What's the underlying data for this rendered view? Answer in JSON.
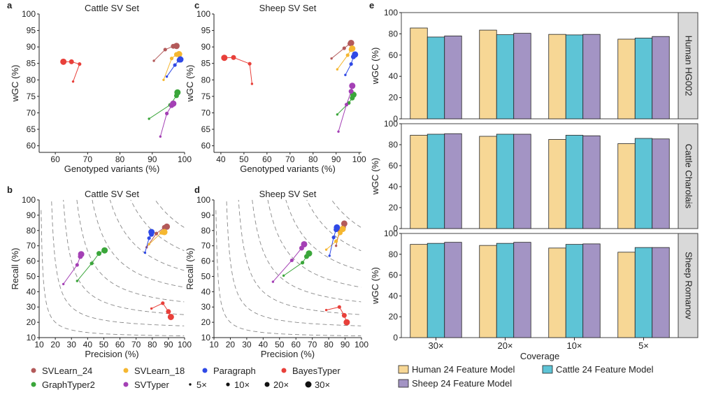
{
  "figure": {
    "panel_letters": [
      "a",
      "b",
      "c",
      "d",
      "e"
    ],
    "legend": {
      "tools": [
        {
          "name": "SVLearn_24",
          "color": "#b35a5a"
        },
        {
          "name": "SVLearn_18",
          "color": "#f5b731"
        },
        {
          "name": "Paragraph",
          "color": "#2f49e6"
        },
        {
          "name": "BayesTyper",
          "color": "#e8403a"
        },
        {
          "name": "GraphTyper2",
          "color": "#3aa63a"
        },
        {
          "name": "SVTyper",
          "color": "#a440b5"
        }
      ],
      "coverages": [
        "5×",
        "10×",
        "20×",
        "30×"
      ]
    }
  },
  "chart_data": [
    {
      "panel": "a",
      "type": "scatter",
      "title": "Cattle SV Set",
      "xlabel": "Genotyped variants (%)",
      "ylabel": "wGC (%)",
      "xlim": [
        55,
        100
      ],
      "ylim": [
        58,
        100
      ],
      "xticks": [
        60,
        70,
        80,
        90,
        100
      ],
      "yticks": [
        60,
        65,
        70,
        75,
        80,
        85,
        90,
        95,
        100
      ],
      "coverages": [
        5,
        10,
        20,
        30
      ],
      "series": [
        {
          "name": "SVLearn_24",
          "x": [
            90.5,
            94.0,
            96.5,
            97.5
          ],
          "y": [
            85.8,
            89.2,
            90.2,
            90.3
          ]
        },
        {
          "name": "SVLearn_18",
          "x": [
            93.5,
            96.0,
            97.5,
            98.3
          ],
          "y": [
            80.0,
            86.5,
            87.7,
            87.8
          ]
        },
        {
          "name": "Paragraph",
          "x": [
            94.5,
            97.0,
            98.3,
            98.7
          ],
          "y": [
            81.0,
            84.5,
            86.0,
            86.2
          ]
        },
        {
          "name": "BayesTyper",
          "x": [
            65.5,
            67.5,
            65.0,
            62.5
          ],
          "y": [
            79.5,
            84.8,
            85.5,
            85.5
          ]
        },
        {
          "name": "GraphTyper2",
          "x": [
            89.0,
            95.5,
            97.5,
            97.8
          ],
          "y": [
            68.2,
            72.4,
            75.2,
            76.2
          ]
        },
        {
          "name": "SVTyper",
          "x": [
            92.5,
            94.5,
            96.0,
            96.5
          ],
          "y": [
            62.8,
            69.8,
            72.2,
            72.8
          ]
        }
      ]
    },
    {
      "panel": "c",
      "type": "scatter",
      "title": "Sheep SV Set",
      "xlabel": "Genotyped variants (%)",
      "ylabel": "wGC (%)",
      "xlim": [
        37,
        101
      ],
      "ylim": [
        58,
        100
      ],
      "xticks": [
        40,
        50,
        60,
        70,
        80,
        90,
        100
      ],
      "yticks": [
        60,
        65,
        70,
        75,
        80,
        85,
        90,
        95,
        100
      ],
      "coverages": [
        5,
        10,
        20,
        30
      ],
      "series": [
        {
          "name": "SVLearn_24",
          "x": [
            88.0,
            93.5,
            96.0,
            96.5
          ],
          "y": [
            86.5,
            89.6,
            91.0,
            91.2
          ]
        },
        {
          "name": "SVLearn_18",
          "x": [
            90.5,
            95.0,
            96.5,
            97.0
          ],
          "y": [
            83.2,
            87.5,
            89.2,
            89.5
          ]
        },
        {
          "name": "Paragraph",
          "x": [
            94.0,
            96.5,
            97.5,
            98.2
          ],
          "y": [
            81.5,
            84.8,
            87.0,
            87.7
          ]
        },
        {
          "name": "BayesTyper",
          "x": [
            53.5,
            52.5,
            45.5,
            41.5
          ],
          "y": [
            78.8,
            84.9,
            86.8,
            86.7
          ]
        },
        {
          "name": "GraphTyper2",
          "x": [
            90.5,
            95.5,
            97.0,
            97.5
          ],
          "y": [
            69.5,
            73.0,
            74.5,
            75.5
          ]
        },
        {
          "name": "SVTyper",
          "x": [
            91.0,
            94.5,
            96.5,
            97.0
          ],
          "y": [
            64.3,
            72.5,
            76.5,
            78.2
          ]
        }
      ]
    },
    {
      "panel": "b",
      "type": "scatter",
      "title": "Cattle SV Set",
      "xlabel": "Precision (%)",
      "ylabel": "Recall (%)",
      "xlim": [
        10,
        100
      ],
      "ylim": [
        10,
        100
      ],
      "xticks": [
        10,
        20,
        30,
        40,
        50,
        60,
        70,
        80,
        90,
        100
      ],
      "yticks": [
        10,
        20,
        30,
        40,
        50,
        60,
        70,
        80,
        90,
        100
      ],
      "coverages": [
        5,
        10,
        20,
        30
      ],
      "series": [
        {
          "name": "SVLearn_24",
          "x": [
            76.5,
            82.5,
            87.5,
            89.0
          ],
          "y": [
            69.0,
            78.0,
            82.0,
            82.5
          ]
        },
        {
          "name": "SVLearn_18",
          "x": [
            78.0,
            85.5,
            86.5,
            87.5
          ],
          "y": [
            71.0,
            78.5,
            78.8,
            79.0
          ]
        },
        {
          "name": "Paragraph",
          "x": [
            75.5,
            78.0,
            79.5,
            79.5
          ],
          "y": [
            65.5,
            75.0,
            77.5,
            79.0
          ]
        },
        {
          "name": "BayesTyper",
          "x": [
            79.5,
            86.5,
            90.0,
            91.5
          ],
          "y": [
            29.0,
            32.5,
            27.0,
            23.5
          ]
        },
        {
          "name": "GraphTyper2",
          "x": [
            33.5,
            42.5,
            47.0,
            50.5
          ],
          "y": [
            47.0,
            58.5,
            65.0,
            67.0
          ]
        },
        {
          "name": "SVTyper",
          "x": [
            25.0,
            33.5,
            35.5,
            36.0
          ],
          "y": [
            45.0,
            57.5,
            63.0,
            64.5
          ]
        }
      ]
    },
    {
      "panel": "d",
      "type": "scatter",
      "title": "Sheep SV Set",
      "xlabel": "Precision (%)",
      "ylabel": "Recall (%)",
      "xlim": [
        10,
        100
      ],
      "ylim": [
        10,
        100
      ],
      "xticks": [
        10,
        20,
        30,
        40,
        50,
        60,
        70,
        80,
        90,
        100
      ],
      "yticks": [
        10,
        20,
        30,
        40,
        50,
        60,
        70,
        80,
        90,
        100
      ],
      "coverages": [
        5,
        10,
        20,
        30
      ],
      "series": [
        {
          "name": "SVLearn_24",
          "x": [
            84.5,
            86.5,
            89.0,
            89.5
          ],
          "y": [
            70.0,
            79.5,
            82.0,
            84.5
          ]
        },
        {
          "name": "SVLearn_18",
          "x": [
            78.5,
            84.5,
            87.0,
            88.5
          ],
          "y": [
            67.5,
            73.0,
            78.5,
            81.0
          ]
        },
        {
          "name": "Paragraph",
          "x": [
            80.5,
            83.0,
            84.5,
            85.0
          ],
          "y": [
            63.5,
            75.5,
            80.5,
            82.0
          ]
        },
        {
          "name": "BayesTyper",
          "x": [
            78.5,
            86.5,
            89.5,
            91.0
          ],
          "y": [
            28.0,
            30.0,
            24.5,
            20.0
          ]
        },
        {
          "name": "GraphTyper2",
          "x": [
            52.5,
            64.0,
            66.5,
            68.0
          ],
          "y": [
            50.5,
            59.0,
            63.0,
            65.0
          ]
        },
        {
          "name": "SVTyper",
          "x": [
            46.0,
            57.5,
            63.5,
            65.0
          ],
          "y": [
            46.5,
            60.5,
            68.5,
            71.0
          ]
        }
      ]
    },
    {
      "panel": "e",
      "type": "bar",
      "xlabel": "Coverage",
      "ylabel": "wGC (%)",
      "categories": [
        "30×",
        "20×",
        "10×",
        "5×"
      ],
      "ylim": [
        0,
        100
      ],
      "yticks": [
        0,
        20,
        40,
        60,
        80,
        100
      ],
      "series_meta": [
        {
          "name": "Human 24 Feature Model",
          "color": "#f7d795"
        },
        {
          "name": "Cattle 24 Feature Model",
          "color": "#5ec4d6"
        },
        {
          "name": "Sheep 24 Feature Model",
          "color": "#a394c4"
        }
      ],
      "facets": [
        {
          "label": "Human HG002",
          "series": [
            [
              85.5,
              77.0,
              78.0
            ],
            [
              83.5,
              79.2,
              80.5
            ],
            [
              79.5,
              79.0,
              79.5
            ],
            [
              75.0,
              76.0,
              77.5
            ]
          ]
        },
        {
          "label": "Cattle Charolais",
          "series": [
            [
              89.0,
              90.0,
              90.5
            ],
            [
              88.0,
              90.0,
              90.0
            ],
            [
              85.0,
              89.0,
              88.5
            ],
            [
              81.0,
              86.0,
              85.5
            ]
          ]
        },
        {
          "label": "Sheep Romanov",
          "series": [
            [
              89.5,
              90.5,
              91.5
            ],
            [
              88.5,
              90.5,
              91.5
            ],
            [
              86.0,
              89.5,
              90.0
            ],
            [
              82.0,
              86.5,
              86.5
            ]
          ]
        }
      ]
    }
  ]
}
